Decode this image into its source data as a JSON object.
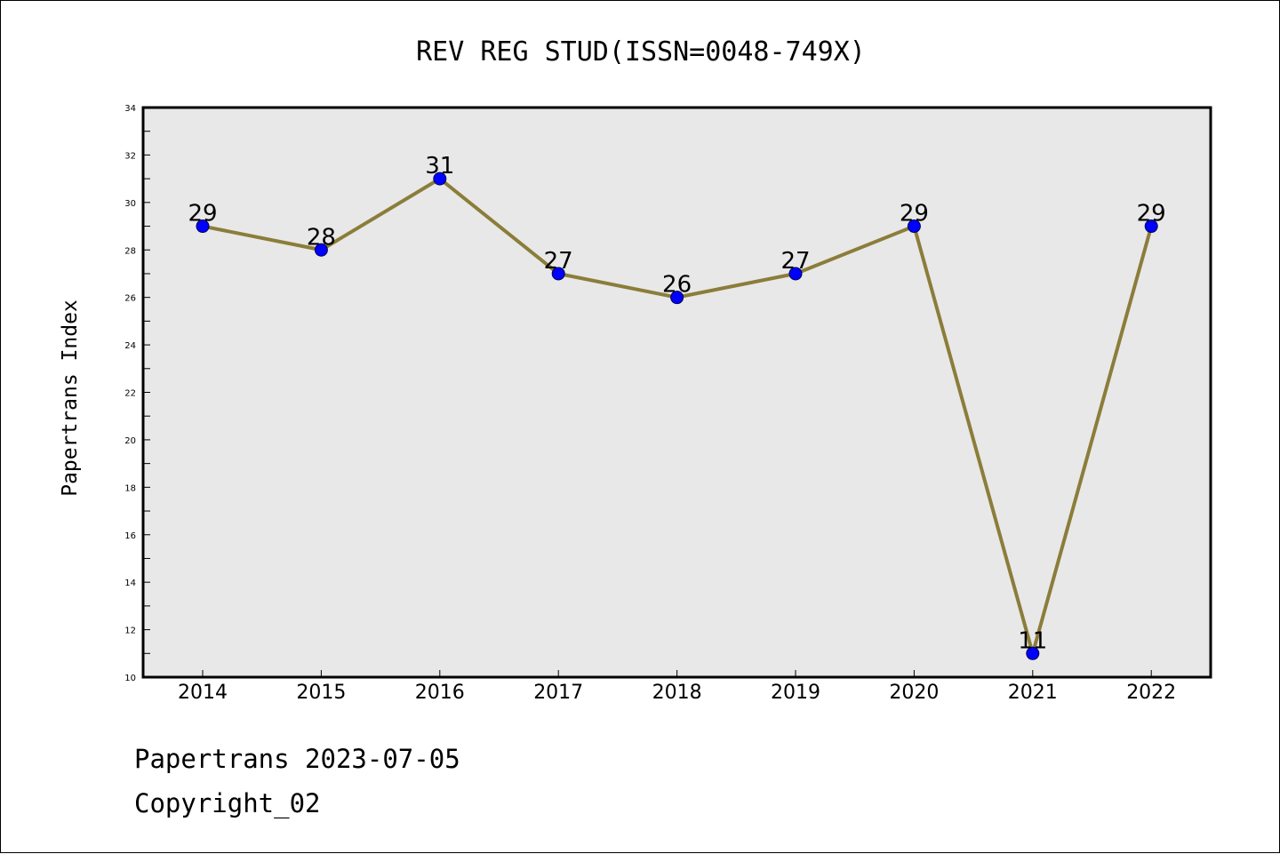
{
  "chart_data": {
    "type": "line",
    "title": "REV REG STUD(ISSN=0048-749X)",
    "xlabel": "",
    "ylabel": "Papertrans Index",
    "categories": [
      "2014",
      "2015",
      "2016",
      "2017",
      "2018",
      "2019",
      "2020",
      "2021",
      "2022"
    ],
    "series": [
      {
        "values": [
          29,
          28,
          31,
          27,
          26,
          27,
          29,
          11,
          29
        ]
      }
    ],
    "data_labels": [
      "29",
      "28",
      "31",
      "27",
      "26",
      "27",
      "29",
      "11",
      "29"
    ],
    "ylim": [
      10,
      34
    ],
    "yticks": [
      "10",
      "12",
      "14",
      "16",
      "18",
      "20",
      "22",
      "24",
      "26",
      "28",
      "30",
      "32",
      "34"
    ],
    "grid": false,
    "line_color": "#8b7d3a",
    "marker_color": "#0000ff",
    "plot_background": "#e8e8e8"
  },
  "footer": {
    "date_line": "Papertrans 2023-07-05",
    "copyright_line": "Copyright_02"
  }
}
